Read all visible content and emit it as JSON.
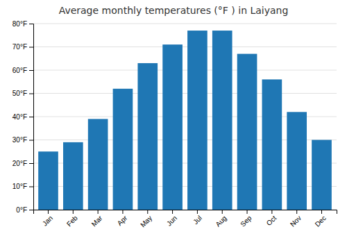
{
  "chart_data": {
    "type": "bar",
    "title": "Average monthly temperatures (°F ) in Laiyang",
    "categories": [
      "Jan",
      "Feb",
      "Mar",
      "Apr",
      "May",
      "Jun",
      "Jul",
      "Aug",
      "Sep",
      "Oct",
      "Nov",
      "Dec"
    ],
    "values": [
      25,
      29,
      39,
      52,
      63,
      71,
      77,
      77,
      67,
      56,
      42,
      30
    ],
    "ylim": [
      0,
      80
    ],
    "yticks": [
      {
        "value": 0,
        "label": "0°F"
      },
      {
        "value": 10,
        "label": "10°F"
      },
      {
        "value": 20,
        "label": "20°F"
      },
      {
        "value": 30,
        "label": "30°F"
      },
      {
        "value": 40,
        "label": "40°F"
      },
      {
        "value": 50,
        "label": "50°F"
      },
      {
        "value": 60,
        "label": "60°F"
      },
      {
        "value": 70,
        "label": "70°F"
      },
      {
        "value": 80,
        "label": "80°F"
      }
    ],
    "grid": true
  }
}
